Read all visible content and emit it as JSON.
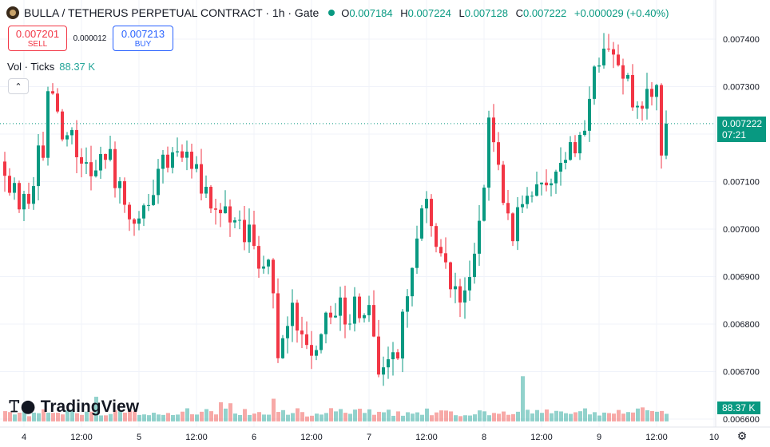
{
  "header": {
    "symbol_icon": "token-coin-icon",
    "title": "BULLA / TETHERUS PERPETUAL CONTRACT · 1h · Gate",
    "status_color": "#089981",
    "ohlc": [
      {
        "key": "O",
        "value": "0.007184"
      },
      {
        "key": "H",
        "value": "0.007224"
      },
      {
        "key": "L",
        "value": "0.007128"
      },
      {
        "key": "C",
        "value": "0.007222"
      }
    ],
    "change": "+0.000029 (+0.40%)"
  },
  "trade": {
    "sell_price": "0.007201",
    "sell_label": "SELL",
    "spread": "0.000012",
    "buy_price": "0.007213",
    "buy_label": "BUY"
  },
  "volume_legend": {
    "label": "Vol · Ticks",
    "value": "88.37 K"
  },
  "collapse_icon": "chevron-up-icon",
  "logo": {
    "icon": "tradingview-logo-icon",
    "text": "TradingView"
  },
  "price_label": {
    "price": "0.007222",
    "countdown": "07:21"
  },
  "volume_label": "88.37 K",
  "settings_icon": "gear-icon",
  "colors": {
    "up": "#089981",
    "down": "#f23645",
    "vol_up": "#26a69a",
    "vol_down": "#ef5350"
  },
  "chart_data": {
    "type": "candlestick",
    "y_ticks": [
      "0.007400",
      "0.007300",
      "0.007200",
      "0.007100",
      "0.007000",
      "0.006900",
      "0.006800",
      "0.006700",
      "0.006600"
    ],
    "x_ticks": [
      {
        "label": "4",
        "bar": 4
      },
      {
        "label": "12:00",
        "bar": 16
      },
      {
        "label": "5",
        "bar": 28
      },
      {
        "label": "12:00",
        "bar": 40
      },
      {
        "label": "6",
        "bar": 52
      },
      {
        "label": "12:00",
        "bar": 64
      },
      {
        "label": "7",
        "bar": 76
      },
      {
        "label": "12:00",
        "bar": 88
      },
      {
        "label": "8",
        "bar": 100
      },
      {
        "label": "12:00",
        "bar": 112
      },
      {
        "label": "9",
        "bar": 124
      },
      {
        "label": "12:00",
        "bar": 136
      },
      {
        "label": "10",
        "bar": 148
      }
    ],
    "current_price": 0.007222,
    "seed": 20240604,
    "waypoints": [
      [
        0,
        0.00711
      ],
      [
        4,
        0.00704
      ],
      [
        8,
        0.00718
      ],
      [
        9,
        0.00727
      ],
      [
        13,
        0.0072
      ],
      [
        17,
        0.00712
      ],
      [
        21,
        0.00717
      ],
      [
        25,
        0.00705
      ],
      [
        28,
        0.00699
      ],
      [
        32,
        0.00712
      ],
      [
        37,
        0.00717
      ],
      [
        43,
        0.00704
      ],
      [
        50,
        0.007
      ],
      [
        56,
        0.00689
      ],
      [
        57,
        0.00675
      ],
      [
        60,
        0.00682
      ],
      [
        64,
        0.00675
      ],
      [
        68,
        0.00683
      ],
      [
        72,
        0.00683
      ],
      [
        76,
        0.00683
      ],
      [
        78,
        0.00672
      ],
      [
        82,
        0.00673
      ],
      [
        85,
        0.00695
      ],
      [
        88,
        0.00705
      ],
      [
        92,
        0.0069
      ],
      [
        96,
        0.00687
      ],
      [
        100,
        0.00709
      ],
      [
        101,
        0.00721
      ],
      [
        104,
        0.00708
      ],
      [
        106,
        0.007
      ],
      [
        110,
        0.00706
      ],
      [
        115,
        0.00712
      ],
      [
        120,
        0.00717
      ],
      [
        122,
        0.0073
      ],
      [
        126,
        0.00737
      ],
      [
        128,
        0.00732
      ],
      [
        132,
        0.00728
      ],
      [
        136,
        0.00728
      ],
      [
        137,
        0.00718
      ],
      [
        138,
        0.00722
      ]
    ],
    "volume_spikes": [
      [
        19,
        3.0
      ],
      [
        56,
        2.8
      ],
      [
        108,
        6.0
      ],
      [
        133,
        1.6
      ],
      [
        45,
        2.6
      ],
      [
        47,
        2.2
      ],
      [
        68,
        1.7
      ]
    ]
  }
}
